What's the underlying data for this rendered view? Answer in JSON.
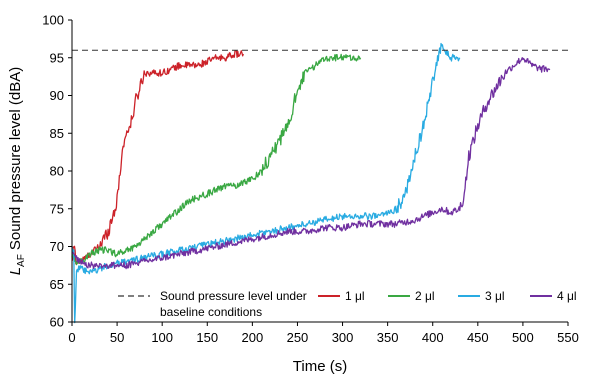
{
  "chart_data": {
    "type": "line",
    "xlabel": "Time (s)",
    "ylabel_symbol": "L",
    "ylabel_subscript": "AF",
    "ylabel_text": "Sound pressure level  (dBA)",
    "xlim": [
      0,
      550
    ],
    "ylim": [
      60,
      100
    ],
    "xticks": [
      0,
      50,
      100,
      150,
      200,
      250,
      300,
      350,
      400,
      450,
      500,
      550
    ],
    "yticks": [
      60,
      65,
      70,
      75,
      80,
      85,
      90,
      95,
      100
    ],
    "grid": false,
    "legend_position": "bottom-right",
    "baseline": {
      "name_line1": "Sound pressure level under",
      "name_line2": "baseline conditions",
      "y": 96,
      "style": "dashed",
      "color": "#333333"
    },
    "series": [
      {
        "name": "1 μl",
        "color": "#cc2229",
        "x": [
          0,
          2,
          5,
          10,
          20,
          30,
          40,
          50,
          55,
          60,
          65,
          70,
          75,
          80,
          90,
          100,
          110,
          120,
          130,
          140,
          150,
          160,
          170,
          180,
          190
        ],
        "y": [
          68,
          70,
          68,
          68,
          69,
          70,
          72,
          76,
          82,
          85,
          86,
          89,
          91,
          93,
          93,
          93,
          93.5,
          94,
          94,
          94,
          94.5,
          95,
          95,
          95.5,
          95.5
        ]
      },
      {
        "name": "2 μl",
        "color": "#3aa843",
        "x": [
          0,
          5,
          10,
          20,
          30,
          40,
          50,
          60,
          70,
          80,
          90,
          100,
          110,
          120,
          130,
          140,
          150,
          160,
          170,
          180,
          190,
          200,
          210,
          220,
          230,
          240,
          250,
          260,
          270,
          280,
          290,
          300,
          310,
          320
        ],
        "y": [
          69,
          68,
          68,
          69,
          69.5,
          69.5,
          69,
          69.5,
          70,
          71,
          72,
          73,
          74,
          75,
          76,
          76.5,
          77,
          77.5,
          78,
          78,
          78.5,
          79,
          80,
          82,
          84,
          86,
          91,
          93,
          94,
          95,
          95,
          95,
          95,
          95
        ]
      },
      {
        "name": "3 μl",
        "color": "#29abe2",
        "x": [
          0,
          2,
          3,
          5,
          10,
          20,
          30,
          40,
          60,
          80,
          100,
          120,
          140,
          160,
          180,
          200,
          220,
          240,
          260,
          280,
          300,
          320,
          340,
          350,
          360,
          370,
          380,
          390,
          400,
          410,
          420,
          430
        ],
        "y": [
          70,
          69,
          60,
          67,
          67,
          66.5,
          67,
          67.5,
          68,
          68.5,
          69,
          69.5,
          70,
          70.5,
          71,
          71.5,
          72,
          72.5,
          73,
          73.5,
          74,
          74,
          74,
          74.5,
          75,
          77,
          82,
          86,
          92,
          96.5,
          95,
          95
        ]
      },
      {
        "name": "4 μl",
        "color": "#7030a0",
        "x": [
          0,
          5,
          10,
          20,
          30,
          40,
          60,
          80,
          100,
          120,
          140,
          160,
          180,
          200,
          220,
          240,
          260,
          280,
          300,
          320,
          340,
          360,
          380,
          400,
          410,
          420,
          430,
          435,
          440,
          450,
          460,
          470,
          480,
          490,
          500,
          510,
          520,
          530
        ],
        "y": [
          69,
          68.5,
          68,
          67.5,
          67.5,
          67.5,
          67.5,
          68,
          68.5,
          69,
          69.5,
          70,
          70.5,
          71,
          71.5,
          72,
          72,
          72.5,
          72.5,
          73,
          73,
          73,
          73.5,
          74.5,
          75,
          74.5,
          75,
          77,
          82,
          86,
          89,
          91,
          93,
          94,
          95,
          94,
          93.5,
          93.5
        ]
      }
    ]
  }
}
